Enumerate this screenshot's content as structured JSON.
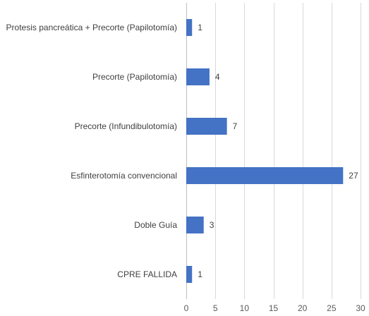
{
  "chart_data": {
    "type": "bar",
    "orientation": "horizontal",
    "categories": [
      "Protesis pancreática + Precorte (Papilotomía)",
      "Precorte (Papilotomía)",
      "Precorte (Infundibulotomía)",
      "Esfinterotomía convencional",
      "Doble Guía",
      "CPRE FALLIDA"
    ],
    "values": [
      1,
      4,
      7,
      27,
      3,
      1
    ],
    "data_labels": [
      "1",
      "4",
      "7",
      "27",
      "3",
      "1"
    ],
    "xlim": [
      0,
      30
    ],
    "x_ticks": [
      "0",
      "5",
      "10",
      "15",
      "20",
      "25",
      "30"
    ],
    "grid": true,
    "bar_color": "#4472c4",
    "title": "",
    "xlabel": "",
    "ylabel": ""
  }
}
